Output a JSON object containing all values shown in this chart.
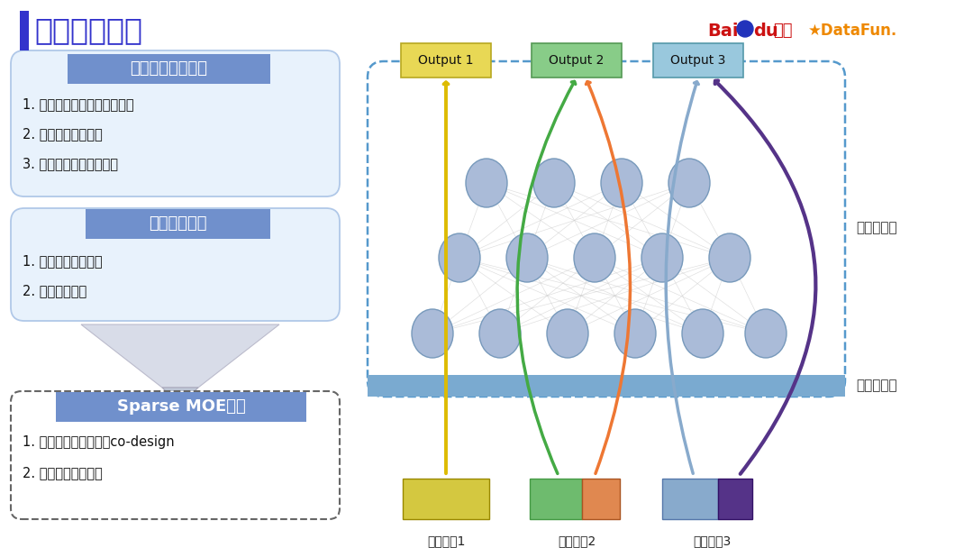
{
  "title": "稀疏路由网络",
  "title_bar_color": "#3333cc",
  "bg_color": "#ffffff",
  "box1_title": "规模与算力的矛盾",
  "box1_items": [
    "1. 千亿参数模型，数十种目标",
    "2. 每秒亿级别计算量",
    "3. 数千机器，在线开销大"
  ],
  "box1_bg": "#e8f2fc",
  "box1_border": "#b0c8e8",
  "box1_title_bg": "#7090cc",
  "box2_title": "传统蒸馏缺陷",
  "box2_items": [
    "1. 流程长，方案复杂",
    "2. 通常精度有损"
  ],
  "box2_bg": "#e8f2fc",
  "box2_border": "#b0c8e8",
  "box2_title_bg": "#7090cc",
  "box3_title": "Sparse MOE网络",
  "box3_items": [
    "1. 弹性计算，策略架构co-design",
    "2. 最优化算力性价比"
  ],
  "box3_bg": "#ffffff",
  "box3_border": "#666666",
  "box3_title_bg": "#7090cc",
  "output_labels": [
    "Output 1",
    "Output 2",
    "Output 3"
  ],
  "out_colors": [
    "#e8d855",
    "#88cc88",
    "#99c8dd"
  ],
  "out_border_colors": [
    "#b8a820",
    "#559955",
    "#5599aa"
  ],
  "queue_labels": [
    "召回队列1",
    "召回队列2",
    "召回队列3"
  ],
  "right_labels": [
    "路由网络层",
    "流量价值层"
  ],
  "node_color": "#aabbd8",
  "node_edge": "#7799bb",
  "dashed_border": "#5599cc",
  "platform_color": "#7aaad0",
  "baidu_red": "#cc1111",
  "baidu_blue": "#2233bb",
  "datafun_orange": "#ee8800",
  "datafun_red": "#dd3300",
  "arrow_yellow": "#ddbb00",
  "arrow_green": "#44aa44",
  "arrow_orange": "#ee7733",
  "arrow_blue": "#88aacc",
  "arrow_purple": "#553388"
}
